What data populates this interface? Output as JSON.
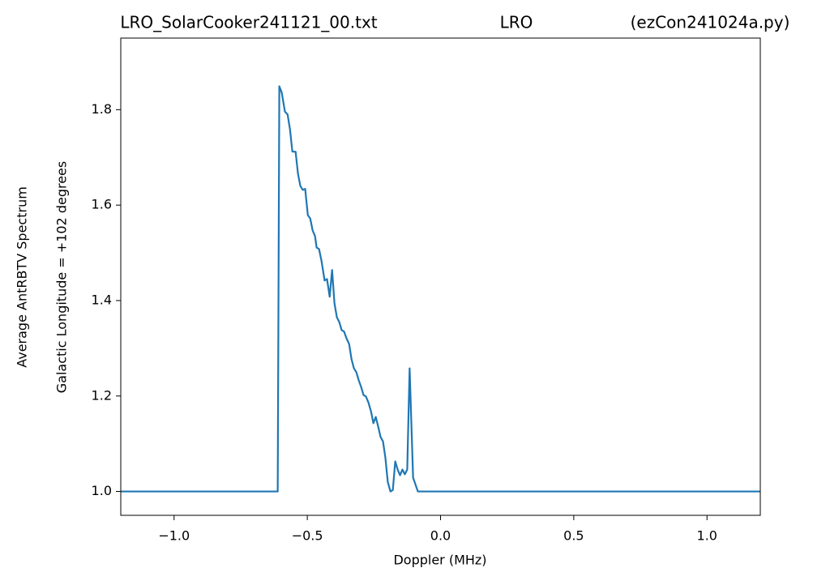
{
  "chart_data": {
    "type": "line",
    "title_parts": [
      "LRO_SolarCooker241121_00.txt",
      "LRO",
      "(ezCon241024a.py)"
    ],
    "x_label": "Doppler (MHz)",
    "y_label_lines": [
      "Average AntRBTV Spectrum",
      "Galactic Longitude = +102 degrees"
    ],
    "xlim": [
      -1.2,
      1.2
    ],
    "ylim": [
      0.95,
      1.95
    ],
    "xticks": [
      {
        "value": -1.0,
        "label": "−1.0"
      },
      {
        "value": -0.5,
        "label": "−0.5"
      },
      {
        "value": 0.0,
        "label": "0.0"
      },
      {
        "value": 0.5,
        "label": "0.5"
      },
      {
        "value": 1.0,
        "label": "1.0"
      }
    ],
    "yticks": [
      {
        "value": 1.0,
        "label": "1.0"
      },
      {
        "value": 1.2,
        "label": "1.2"
      },
      {
        "value": 1.4,
        "label": "1.4"
      },
      {
        "value": 1.6,
        "label": "1.6"
      },
      {
        "value": 1.8,
        "label": "1.8"
      }
    ],
    "series": [
      {
        "color": "#1f77b4",
        "x": [
          -1.2,
          -0.611,
          -0.605,
          -0.596,
          -0.584,
          -0.574,
          -0.565,
          -0.556,
          -0.544,
          -0.535,
          -0.526,
          -0.517,
          -0.508,
          -0.498,
          -0.489,
          -0.48,
          -0.471,
          -0.465,
          -0.456,
          -0.447,
          -0.435,
          -0.426,
          -0.416,
          -0.407,
          -0.398,
          -0.389,
          -0.38,
          -0.371,
          -0.362,
          -0.353,
          -0.343,
          -0.334,
          -0.325,
          -0.316,
          -0.307,
          -0.298,
          -0.289,
          -0.28,
          -0.271,
          -0.261,
          -0.252,
          -0.243,
          -0.234,
          -0.225,
          -0.216,
          -0.207,
          -0.198,
          -0.188,
          -0.179,
          -0.17,
          -0.161,
          -0.152,
          -0.143,
          -0.134,
          -0.125,
          -0.116,
          -0.103,
          -0.085,
          1.2
        ],
        "values": [
          1.0,
          1.0,
          1.849,
          1.836,
          1.796,
          1.79,
          1.759,
          1.712,
          1.712,
          1.666,
          1.64,
          1.632,
          1.634,
          1.579,
          1.572,
          1.547,
          1.535,
          1.511,
          1.508,
          1.484,
          1.442,
          1.445,
          1.408,
          1.464,
          1.394,
          1.365,
          1.355,
          1.338,
          1.335,
          1.321,
          1.309,
          1.277,
          1.258,
          1.25,
          1.233,
          1.219,
          1.202,
          1.199,
          1.187,
          1.168,
          1.143,
          1.156,
          1.136,
          1.114,
          1.105,
          1.071,
          1.02,
          1.0,
          1.003,
          1.063,
          1.046,
          1.034,
          1.046,
          1.036,
          1.046,
          1.258,
          1.029,
          1.0,
          1.0
        ]
      }
    ]
  }
}
